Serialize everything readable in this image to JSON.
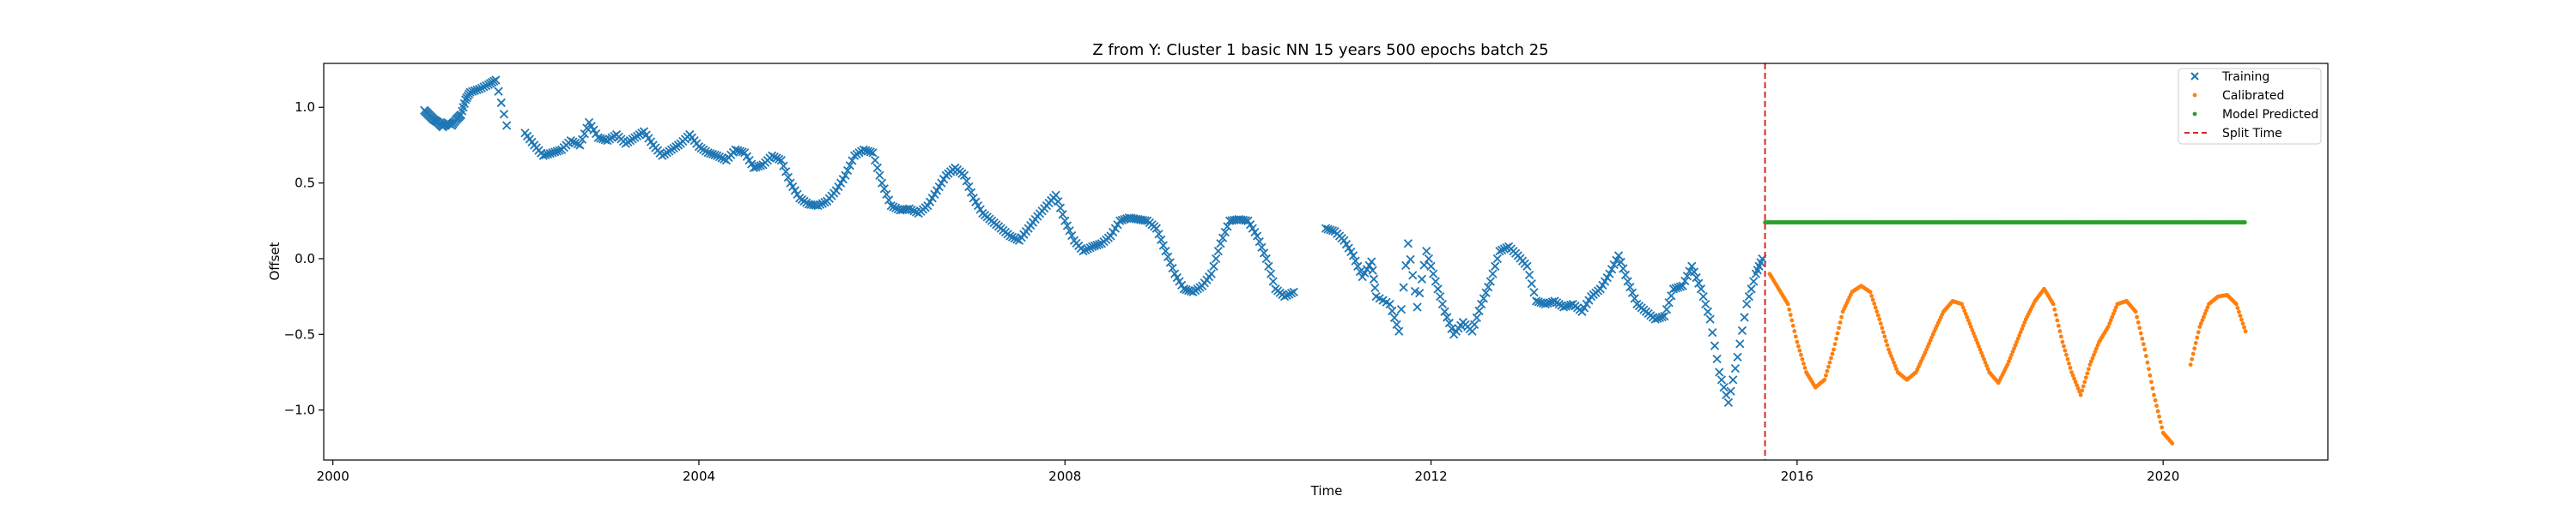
{
  "chart_data": {
    "type": "scatter",
    "title": "Z from Y: Cluster 1 basic NN 15 years 500 epochs batch 25",
    "xlabel": "Time",
    "ylabel": "Offset",
    "xlim": [
      1999.9,
      2021.8
    ],
    "ylim": [
      -1.33,
      1.29
    ],
    "xticks": [
      2000,
      2004,
      2008,
      2012,
      2016,
      2020
    ],
    "yticks": [
      -1.0,
      -0.5,
      0.0,
      0.5,
      1.0
    ],
    "xtick_labels": [
      "2000",
      "2004",
      "2008",
      "2012",
      "2016",
      "2020"
    ],
    "ytick_labels": [
      "−1.0",
      "−0.5",
      "0.0",
      "0.5",
      "1.0"
    ],
    "legend_position": "top-right",
    "split_time": 2015.65,
    "series": [
      {
        "name": "Training",
        "marker": "x",
        "color": "#1f77b4",
        "points": [
          [
            2001.0,
            0.98
          ],
          [
            2001.05,
            0.95
          ],
          [
            2001.1,
            0.92
          ],
          [
            2001.15,
            0.9
          ],
          [
            2001.2,
            0.87
          ],
          [
            2001.25,
            0.9
          ],
          [
            2001.3,
            0.88
          ],
          [
            2001.35,
            0.92
          ],
          [
            2001.4,
            0.95
          ],
          [
            2001.45,
            1.05
          ],
          [
            2001.5,
            1.1
          ],
          [
            2001.6,
            1.12
          ],
          [
            2001.7,
            1.15
          ],
          [
            2001.78,
            1.18
          ],
          [
            2001.9,
            0.88
          ],
          [
            2002.1,
            0.83
          ],
          [
            2002.2,
            0.75
          ],
          [
            2002.3,
            0.68
          ],
          [
            2002.4,
            0.7
          ],
          [
            2002.5,
            0.72
          ],
          [
            2002.6,
            0.78
          ],
          [
            2002.7,
            0.75
          ],
          [
            2002.8,
            0.9
          ],
          [
            2002.9,
            0.8
          ],
          [
            2003.0,
            0.78
          ],
          [
            2003.1,
            0.82
          ],
          [
            2003.2,
            0.76
          ],
          [
            2003.3,
            0.8
          ],
          [
            2003.4,
            0.84
          ],
          [
            2003.5,
            0.75
          ],
          [
            2003.6,
            0.68
          ],
          [
            2003.7,
            0.72
          ],
          [
            2003.8,
            0.76
          ],
          [
            2003.9,
            0.82
          ],
          [
            2004.0,
            0.74
          ],
          [
            2004.1,
            0.7
          ],
          [
            2004.2,
            0.68
          ],
          [
            2004.3,
            0.65
          ],
          [
            2004.4,
            0.72
          ],
          [
            2004.5,
            0.7
          ],
          [
            2004.6,
            0.6
          ],
          [
            2004.7,
            0.62
          ],
          [
            2004.8,
            0.68
          ],
          [
            2004.9,
            0.65
          ],
          [
            2005.0,
            0.5
          ],
          [
            2005.1,
            0.4
          ],
          [
            2005.2,
            0.36
          ],
          [
            2005.3,
            0.35
          ],
          [
            2005.4,
            0.38
          ],
          [
            2005.5,
            0.45
          ],
          [
            2005.6,
            0.55
          ],
          [
            2005.7,
            0.68
          ],
          [
            2005.8,
            0.72
          ],
          [
            2005.9,
            0.7
          ],
          [
            2006.0,
            0.5
          ],
          [
            2006.1,
            0.35
          ],
          [
            2006.2,
            0.32
          ],
          [
            2006.3,
            0.33
          ],
          [
            2006.4,
            0.3
          ],
          [
            2006.5,
            0.35
          ],
          [
            2006.6,
            0.45
          ],
          [
            2006.7,
            0.55
          ],
          [
            2006.8,
            0.6
          ],
          [
            2006.9,
            0.55
          ],
          [
            2007.0,
            0.4
          ],
          [
            2007.1,
            0.3
          ],
          [
            2007.2,
            0.25
          ],
          [
            2007.3,
            0.2
          ],
          [
            2007.4,
            0.15
          ],
          [
            2007.5,
            0.12
          ],
          [
            2007.6,
            0.2
          ],
          [
            2007.7,
            0.28
          ],
          [
            2007.8,
            0.35
          ],
          [
            2007.9,
            0.42
          ],
          [
            2008.0,
            0.25
          ],
          [
            2008.1,
            0.12
          ],
          [
            2008.2,
            0.05
          ],
          [
            2008.3,
            0.08
          ],
          [
            2008.4,
            0.1
          ],
          [
            2008.5,
            0.15
          ],
          [
            2008.6,
            0.25
          ],
          [
            2008.7,
            0.27
          ],
          [
            2008.8,
            0.26
          ],
          [
            2008.9,
            0.25
          ],
          [
            2009.0,
            0.2
          ],
          [
            2009.1,
            0.05
          ],
          [
            2009.2,
            -0.1
          ],
          [
            2009.3,
            -0.2
          ],
          [
            2009.4,
            -0.22
          ],
          [
            2009.5,
            -0.18
          ],
          [
            2009.6,
            -0.1
          ],
          [
            2009.7,
            0.1
          ],
          [
            2009.8,
            0.25
          ],
          [
            2009.9,
            0.26
          ],
          [
            2010.0,
            0.25
          ],
          [
            2010.1,
            0.15
          ],
          [
            2010.2,
            0.0
          ],
          [
            2010.3,
            -0.2
          ],
          [
            2010.4,
            -0.25
          ],
          [
            2010.5,
            -0.22
          ],
          [
            2010.85,
            0.2
          ],
          [
            2010.95,
            0.18
          ],
          [
            2011.05,
            0.12
          ],
          [
            2011.15,
            0.02
          ],
          [
            2011.25,
            -0.12
          ],
          [
            2011.35,
            -0.02
          ],
          [
            2011.4,
            -0.25
          ],
          [
            2011.55,
            -0.3
          ],
          [
            2011.65,
            -0.48
          ],
          [
            2011.75,
            0.1
          ],
          [
            2011.85,
            -0.32
          ],
          [
            2011.95,
            0.05
          ],
          [
            2012.05,
            -0.15
          ],
          [
            2012.15,
            -0.35
          ],
          [
            2012.25,
            -0.5
          ],
          [
            2012.35,
            -0.42
          ],
          [
            2012.45,
            -0.48
          ],
          [
            2012.55,
            -0.3
          ],
          [
            2012.65,
            -0.15
          ],
          [
            2012.75,
            0.05
          ],
          [
            2012.85,
            0.08
          ],
          [
            2012.95,
            0.02
          ],
          [
            2013.05,
            -0.05
          ],
          [
            2013.15,
            -0.28
          ],
          [
            2013.25,
            -0.3
          ],
          [
            2013.35,
            -0.28
          ],
          [
            2013.45,
            -0.32
          ],
          [
            2013.55,
            -0.3
          ],
          [
            2013.65,
            -0.35
          ],
          [
            2013.75,
            -0.25
          ],
          [
            2013.85,
            -0.2
          ],
          [
            2013.95,
            -0.1
          ],
          [
            2014.05,
            0.02
          ],
          [
            2014.15,
            -0.15
          ],
          [
            2014.25,
            -0.3
          ],
          [
            2014.35,
            -0.35
          ],
          [
            2014.45,
            -0.4
          ],
          [
            2014.55,
            -0.38
          ],
          [
            2014.65,
            -0.2
          ],
          [
            2014.75,
            -0.18
          ],
          [
            2014.85,
            -0.05
          ],
          [
            2014.95,
            -0.2
          ],
          [
            2015.05,
            -0.4
          ],
          [
            2015.15,
            -0.75
          ],
          [
            2015.25,
            -0.95
          ],
          [
            2015.35,
            -0.65
          ],
          [
            2015.45,
            -0.3
          ],
          [
            2015.55,
            -0.1
          ],
          [
            2015.62,
            0.0
          ]
        ]
      },
      {
        "name": "Calibrated",
        "marker": "dot",
        "color": "#ff7f0e",
        "points": [
          [
            2015.7,
            -0.1
          ],
          [
            2015.8,
            -0.2
          ],
          [
            2015.9,
            -0.3
          ],
          [
            2016.0,
            -0.55
          ],
          [
            2016.1,
            -0.75
          ],
          [
            2016.2,
            -0.85
          ],
          [
            2016.3,
            -0.8
          ],
          [
            2016.4,
            -0.6
          ],
          [
            2016.5,
            -0.35
          ],
          [
            2016.6,
            -0.22
          ],
          [
            2016.7,
            -0.18
          ],
          [
            2016.8,
            -0.22
          ],
          [
            2016.9,
            -0.4
          ],
          [
            2017.0,
            -0.6
          ],
          [
            2017.1,
            -0.75
          ],
          [
            2017.2,
            -0.8
          ],
          [
            2017.3,
            -0.75
          ],
          [
            2017.4,
            -0.62
          ],
          [
            2017.5,
            -0.48
          ],
          [
            2017.6,
            -0.35
          ],
          [
            2017.7,
            -0.28
          ],
          [
            2017.8,
            -0.3
          ],
          [
            2017.9,
            -0.45
          ],
          [
            2018.0,
            -0.6
          ],
          [
            2018.1,
            -0.75
          ],
          [
            2018.2,
            -0.82
          ],
          [
            2018.3,
            -0.7
          ],
          [
            2018.4,
            -0.55
          ],
          [
            2018.5,
            -0.4
          ],
          [
            2018.6,
            -0.28
          ],
          [
            2018.7,
            -0.2
          ],
          [
            2018.8,
            -0.3
          ],
          [
            2018.9,
            -0.55
          ],
          [
            2019.0,
            -0.75
          ],
          [
            2019.1,
            -0.9
          ],
          [
            2019.2,
            -0.7
          ],
          [
            2019.3,
            -0.55
          ],
          [
            2019.4,
            -0.45
          ],
          [
            2019.5,
            -0.3
          ],
          [
            2019.6,
            -0.28
          ],
          [
            2019.7,
            -0.35
          ],
          [
            2019.8,
            -0.6
          ],
          [
            2019.9,
            -0.9
          ],
          [
            2020.0,
            -1.15
          ],
          [
            2020.1,
            -1.22
          ],
          [
            2020.3,
            -0.7
          ],
          [
            2020.4,
            -0.45
          ],
          [
            2020.5,
            -0.3
          ],
          [
            2020.6,
            -0.25
          ],
          [
            2020.7,
            -0.24
          ],
          [
            2020.8,
            -0.3
          ],
          [
            2020.9,
            -0.48
          ]
        ]
      },
      {
        "name": "Model Predicted",
        "marker": "dot",
        "color": "#2ca02c",
        "points": [
          [
            2015.65,
            0.24
          ],
          [
            2020.9,
            0.24
          ]
        ]
      }
    ],
    "split_line": {
      "name": "Split Time",
      "color": "#d62728",
      "style": "dashed"
    }
  }
}
